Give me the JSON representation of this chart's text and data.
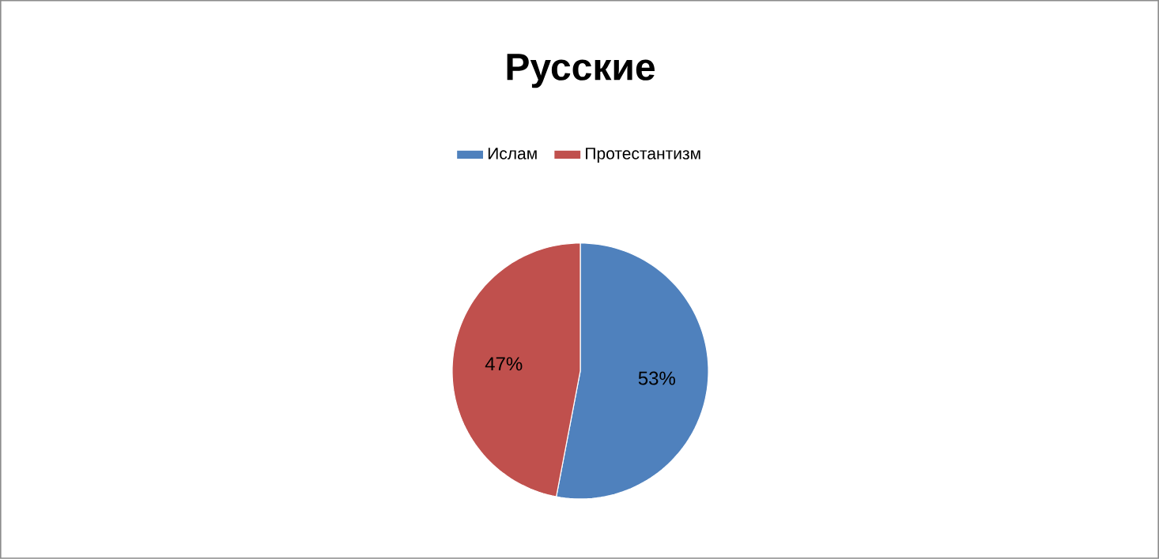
{
  "chart_data": {
    "type": "pie",
    "title": "Русские",
    "categories": [
      "Ислам",
      "Протестантизм"
    ],
    "values": [
      53,
      47
    ],
    "colors": [
      "#4f81bd",
      "#c0504d"
    ],
    "value_labels": [
      "53%",
      "47%"
    ],
    "legend": "top"
  }
}
